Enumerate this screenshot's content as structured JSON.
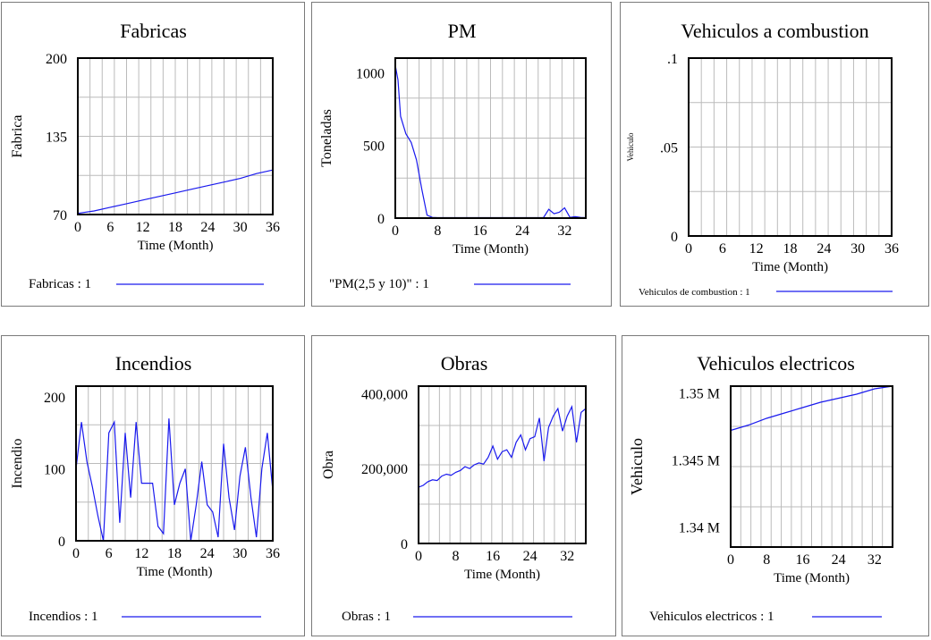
{
  "colors": {
    "series": "#1a1aee",
    "frame": "#000000",
    "grid": "#bbbbbb",
    "panel_border": "#7a7a7a"
  },
  "chart_data": [
    {
      "type": "line",
      "title": "Fabricas",
      "ylabel": "Fabrica",
      "xlabel": "Time (Month)",
      "xlim": [
        0,
        36
      ],
      "ylim": [
        70,
        200
      ],
      "xticks": [
        "0",
        "6",
        "12",
        "18",
        "24",
        "30",
        "36"
      ],
      "yticks": [
        "70",
        "135",
        "200"
      ],
      "legend": "Fabricas : 1",
      "series": [
        {
          "name": "Fabricas : 1",
          "x": [
            0,
            3,
            6,
            9,
            12,
            15,
            18,
            21,
            24,
            27,
            30,
            33,
            36
          ],
          "values": [
            71,
            73,
            76,
            79,
            82,
            85,
            88,
            91,
            94,
            97,
            100,
            104,
            107
          ]
        }
      ]
    },
    {
      "type": "line",
      "title": "PM",
      "ylabel": "Toneladas",
      "xlabel": "Time (Month)",
      "xlim": [
        0,
        36
      ],
      "ylim": [
        0,
        1100
      ],
      "xticks": [
        "0",
        "8",
        "16",
        "24",
        "32"
      ],
      "yticks": [
        "0",
        "500",
        "1000"
      ],
      "legend": "\"PM(2,5 y 10)\" : 1",
      "series": [
        {
          "name": "\"PM(2,5 y 10)\" : 1",
          "x": [
            0,
            0.5,
            1,
            2,
            3,
            4,
            5,
            6,
            7,
            8,
            10,
            15,
            20,
            25,
            28,
            29,
            30,
            31,
            32,
            33,
            34,
            35,
            36
          ],
          "values": [
            1050,
            950,
            700,
            580,
            520,
            400,
            200,
            20,
            5,
            3,
            3,
            3,
            3,
            3,
            3,
            60,
            30,
            40,
            70,
            5,
            10,
            5,
            3
          ]
        }
      ]
    },
    {
      "type": "line",
      "title": "Vehiculos a combustion",
      "ylabel": "Vehiculo",
      "xlabel": "Time (Month)",
      "xlim": [
        0,
        36
      ],
      "ylim": [
        0,
        0.1
      ],
      "xticks": [
        "0",
        "6",
        "12",
        "18",
        "24",
        "30",
        "36"
      ],
      "yticks": [
        "0",
        ".05",
        ".1"
      ],
      "legend": "Vehiculos de combustion : 1",
      "series": [
        {
          "name": "Vehiculos de combustion : 1",
          "x": [
            0,
            36
          ],
          "values": [
            0,
            0
          ]
        }
      ]
    },
    {
      "type": "line",
      "title": "Incendios",
      "ylabel": "Incendio",
      "xlabel": "Time (Month)",
      "xlim": [
        0,
        36
      ],
      "ylim": [
        0,
        215
      ],
      "xticks": [
        "0",
        "6",
        "12",
        "18",
        "24",
        "30",
        "36"
      ],
      "yticks": [
        "0",
        "100",
        "200"
      ],
      "legend": "Incendios : 1",
      "series": [
        {
          "name": "Incendios : 1",
          "x": [
            0,
            1,
            2,
            3,
            4,
            5,
            6,
            7,
            8,
            9,
            10,
            11,
            12,
            13,
            14,
            15,
            16,
            17,
            18,
            19,
            20,
            21,
            22,
            23,
            24,
            25,
            26,
            27,
            28,
            29,
            30,
            31,
            32,
            33,
            34,
            35,
            36
          ],
          "values": [
            100,
            165,
            110,
            75,
            35,
            0,
            150,
            165,
            25,
            150,
            60,
            165,
            80,
            80,
            80,
            20,
            10,
            170,
            50,
            80,
            100,
            0,
            50,
            110,
            50,
            40,
            5,
            135,
            60,
            15,
            90,
            130,
            60,
            5,
            100,
            150,
            70
          ]
        }
      ]
    },
    {
      "type": "line",
      "title": "Obras",
      "ylabel": "Obra",
      "xlabel": "Time (Month)",
      "xlim": [
        0,
        36
      ],
      "ylim": [
        0,
        420000
      ],
      "xticks": [
        "0",
        "8",
        "16",
        "24",
        "32"
      ],
      "yticks": [
        "0",
        "200,000",
        "400,000"
      ],
      "legend": "Obras : 1",
      "series": [
        {
          "name": "Obras : 1",
          "x": [
            0,
            1,
            2,
            3,
            4,
            5,
            6,
            7,
            8,
            9,
            10,
            11,
            12,
            13,
            14,
            15,
            16,
            17,
            18,
            19,
            20,
            21,
            22,
            23,
            24,
            25,
            26,
            27,
            28,
            29,
            30,
            31,
            32,
            33,
            34,
            35,
            36
          ],
          "values": [
            150000,
            155000,
            165000,
            170000,
            168000,
            180000,
            185000,
            182000,
            190000,
            195000,
            205000,
            200000,
            210000,
            215000,
            212000,
            230000,
            260000,
            225000,
            245000,
            250000,
            230000,
            270000,
            290000,
            250000,
            280000,
            285000,
            335000,
            220000,
            310000,
            340000,
            360000,
            300000,
            340000,
            365000,
            270000,
            350000,
            360000
          ]
        }
      ]
    },
    {
      "type": "line",
      "title": "Vehiculos electricos",
      "ylabel": "Vehiculo",
      "xlabel": "Time (Month)",
      "xlim": [
        0,
        36
      ],
      "ylim": [
        1.3385,
        1.3505
      ],
      "xticks": [
        "0",
        "8",
        "16",
        "24",
        "32"
      ],
      "yticks": [
        "1.34 M",
        "1.345 M",
        "1.35 M"
      ],
      "ytick_values": [
        1.34,
        1.345,
        1.35
      ],
      "legend": "Vehiculos electricos : 1",
      "series": [
        {
          "name": "Vehiculos electricos : 1",
          "x": [
            0,
            4,
            8,
            12,
            16,
            20,
            24,
            28,
            32,
            36
          ],
          "values": [
            1.3472,
            1.3476,
            1.3481,
            1.3485,
            1.3489,
            1.3493,
            1.3496,
            1.3499,
            1.3503,
            1.3505
          ]
        }
      ]
    }
  ]
}
